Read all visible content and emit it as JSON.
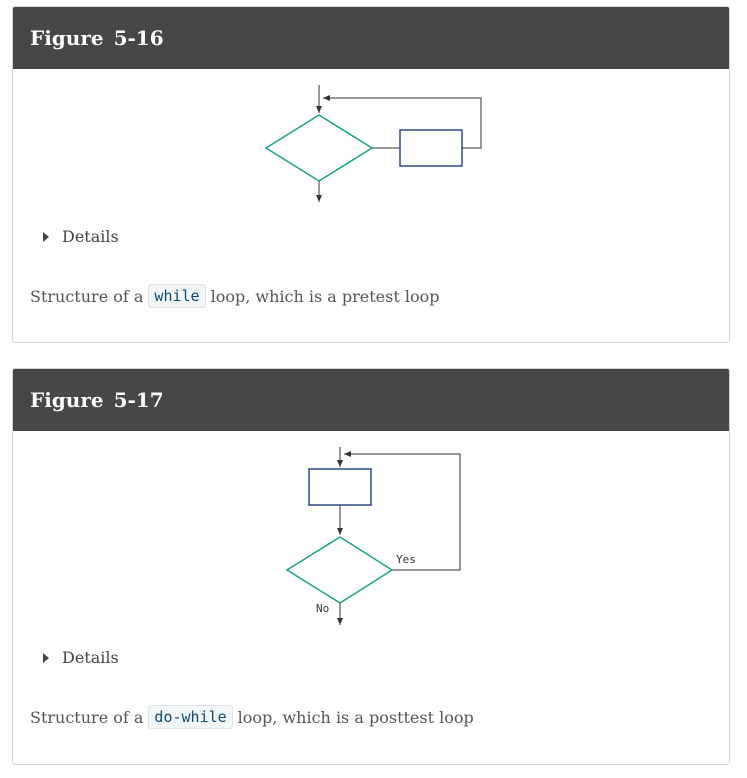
{
  "figures": [
    {
      "label": "Figure",
      "number": "5-16",
      "details_label": "Details",
      "caption_before": "Structure of a",
      "caption_code": "while",
      "caption_after": "loop, which is a pretest loop"
    },
    {
      "label": "Figure",
      "number": "5-17",
      "details_label": "Details",
      "caption_before": "Structure of a",
      "caption_code": "do-while",
      "caption_after": "loop, which is a posttest loop",
      "yes_label": "Yes",
      "no_label": "No"
    }
  ],
  "colors": {
    "header_bg": "#474747",
    "decision_stroke": "#17a589",
    "process_stroke": "#2c4a8c",
    "line": "#333333"
  }
}
